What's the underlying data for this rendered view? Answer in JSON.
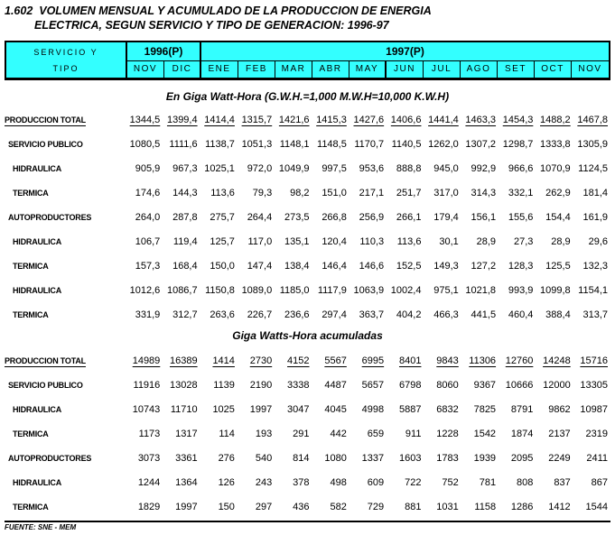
{
  "title": {
    "line1": "1.602  VOLUMEN MENSUAL Y ACUMULADO DE LA PRODUCCION DE ENERGIA",
    "line2": "ELECTRICA, SEGUN SERVICIO Y TIPO DE GENERACION: 1996-97"
  },
  "header": {
    "stub_line1": "SERVICIO Y",
    "stub_line2": "TIPO",
    "group_1996": "1996(P)",
    "group_1997": "1997(P)",
    "months_1996": [
      "NOV",
      "DIC"
    ],
    "months_1997": [
      "ENE",
      "FEB",
      "MAR",
      "ABR",
      "MAY",
      "JUN",
      "JUL",
      "AGO",
      "SET",
      "OCT",
      "NOV"
    ]
  },
  "sections": [
    {
      "heading": "En Giga Watt-Hora (G.W.H.=1,000 M.W.H=10,000 K.W.H)",
      "rows": [
        {
          "label": "PRODUCCION TOTAL",
          "indent": 0,
          "underline": true,
          "values": [
            "1344,5",
            "1399,4",
            "1414,4",
            "1315,7",
            "1421,6",
            "1415,3",
            "1427,6",
            "1406,6",
            "1441,4",
            "1463,3",
            "1454,3",
            "1488,2",
            "1467,8"
          ]
        },
        {
          "label": "SERVICIO PUBLICO",
          "indent": 1,
          "underline": false,
          "values": [
            "1080,5",
            "1111,6",
            "1138,7",
            "1051,3",
            "1148,1",
            "1148,5",
            "1170,7",
            "1140,5",
            "1262,0",
            "1307,2",
            "1298,7",
            "1333,8",
            "1305,9"
          ]
        },
        {
          "label": "HIDRAULICA",
          "indent": 2,
          "underline": false,
          "values": [
            "905,9",
            "967,3",
            "1025,1",
            "972,0",
            "1049,9",
            "997,5",
            "953,6",
            "888,8",
            "945,0",
            "992,9",
            "966,6",
            "1070,9",
            "1124,5"
          ]
        },
        {
          "label": "TERMICA",
          "indent": 2,
          "underline": false,
          "values": [
            "174,6",
            "144,3",
            "113,6",
            "79,3",
            "98,2",
            "151,0",
            "217,1",
            "251,7",
            "317,0",
            "314,3",
            "332,1",
            "262,9",
            "181,4"
          ]
        },
        {
          "label": "AUTOPRODUCTORES",
          "indent": 1,
          "underline": false,
          "values": [
            "264,0",
            "287,8",
            "275,7",
            "264,4",
            "273,5",
            "266,8",
            "256,9",
            "266,1",
            "179,4",
            "156,1",
            "155,6",
            "154,4",
            "161,9"
          ]
        },
        {
          "label": "HIDRAULICA",
          "indent": 2,
          "underline": false,
          "values": [
            "106,7",
            "119,4",
            "125,7",
            "117,0",
            "135,1",
            "120,4",
            "110,3",
            "113,6",
            "30,1",
            "28,9",
            "27,3",
            "28,9",
            "29,6"
          ]
        },
        {
          "label": "TERMICA",
          "indent": 2,
          "underline": false,
          "values": [
            "157,3",
            "168,4",
            "150,0",
            "147,4",
            "138,4",
            "146,4",
            "146,6",
            "152,5",
            "149,3",
            "127,2",
            "128,3",
            "125,5",
            "132,3"
          ]
        },
        {
          "label": "HIDRAULICA",
          "indent": 2,
          "underline": false,
          "values": [
            "1012,6",
            "1086,7",
            "1150,8",
            "1089,0",
            "1185,0",
            "1117,9",
            "1063,9",
            "1002,4",
            "975,1",
            "1021,8",
            "993,9",
            "1099,8",
            "1154,1"
          ]
        },
        {
          "label": "TERMICA",
          "indent": 2,
          "underline": false,
          "values": [
            "331,9",
            "312,7",
            "263,6",
            "226,7",
            "236,6",
            "297,4",
            "363,7",
            "404,2",
            "466,3",
            "441,5",
            "460,4",
            "388,4",
            "313,7"
          ]
        }
      ]
    },
    {
      "heading": "Giga Watts-Hora acumuladas",
      "rows": [
        {
          "label": "PRODUCCION TOTAL",
          "indent": 0,
          "underline": true,
          "values": [
            "14989",
            "16389",
            "1414",
            "2730",
            "4152",
            "5567",
            "6995",
            "8401",
            "9843",
            "11306",
            "12760",
            "14248",
            "15716"
          ]
        },
        {
          "label": "SERVICIO PUBLICO",
          "indent": 1,
          "underline": false,
          "values": [
            "11916",
            "13028",
            "1139",
            "2190",
            "3338",
            "4487",
            "5657",
            "6798",
            "8060",
            "9367",
            "10666",
            "12000",
            "13305"
          ]
        },
        {
          "label": "HIDRAULICA",
          "indent": 2,
          "underline": false,
          "values": [
            "10743",
            "11710",
            "1025",
            "1997",
            "3047",
            "4045",
            "4998",
            "5887",
            "6832",
            "7825",
            "8791",
            "9862",
            "10987"
          ]
        },
        {
          "label": "TERMICA",
          "indent": 2,
          "underline": false,
          "values": [
            "1173",
            "1317",
            "114",
            "193",
            "291",
            "442",
            "659",
            "911",
            "1228",
            "1542",
            "1874",
            "2137",
            "2319"
          ]
        },
        {
          "label": "AUTOPRODUCTORES",
          "indent": 1,
          "underline": false,
          "values": [
            "3073",
            "3361",
            "276",
            "540",
            "814",
            "1080",
            "1337",
            "1603",
            "1783",
            "1939",
            "2095",
            "2249",
            "2411"
          ]
        },
        {
          "label": "HIDRAULICA",
          "indent": 2,
          "underline": false,
          "values": [
            "1244",
            "1364",
            "126",
            "243",
            "378",
            "498",
            "609",
            "722",
            "752",
            "781",
            "808",
            "837",
            "867"
          ]
        },
        {
          "label": "TERMICA",
          "indent": 2,
          "underline": false,
          "values": [
            "1829",
            "1997",
            "150",
            "297",
            "436",
            "582",
            "729",
            "881",
            "1031",
            "1158",
            "1286",
            "1412",
            "1544"
          ]
        }
      ]
    }
  ],
  "footer": {
    "source": "FUENTE: SNE - MEM"
  },
  "colors": {
    "header_bg": "#33FFFF",
    "border": "#000000",
    "text": "#000000"
  }
}
